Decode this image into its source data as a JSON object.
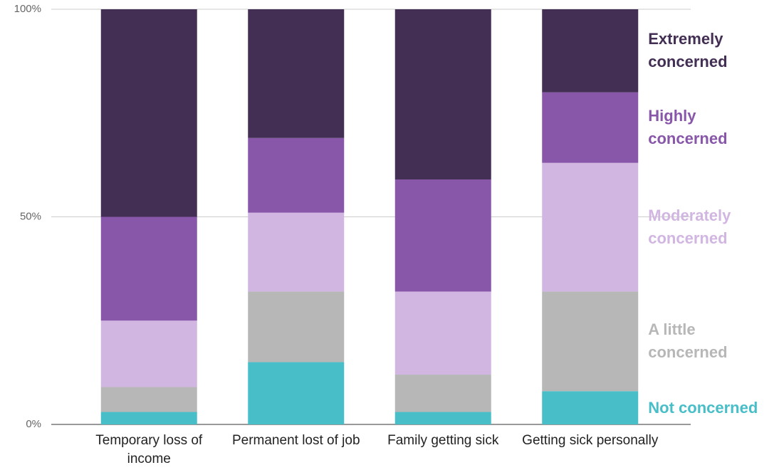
{
  "chart_data": {
    "type": "stacked_bar",
    "categories": [
      "Temporary loss of income",
      "Permanent lost of job",
      "Family getting sick",
      "Getting sick personally"
    ],
    "series": [
      {
        "name": "Not concerned",
        "color": "#48bec8",
        "values": [
          3,
          15,
          3,
          8
        ]
      },
      {
        "name": "A little concerned",
        "color": "#b7b7b7",
        "values": [
          6,
          17,
          9,
          24
        ]
      },
      {
        "name": "Moderately concerned",
        "color": "#d2b6e2",
        "values": [
          16,
          19,
          20,
          31
        ]
      },
      {
        "name": "Highly concerned",
        "color": "#8957a9",
        "values": [
          25,
          18,
          27,
          17
        ]
      },
      {
        "name": "Extremely concerned",
        "color": "#432e54",
        "values": [
          50,
          31,
          41,
          20
        ]
      }
    ],
    "ylim": [
      0,
      100
    ],
    "yticks": [
      {
        "value": 0,
        "label": "0%"
      },
      {
        "value": 50,
        "label": "50%"
      },
      {
        "value": 100,
        "label": "100%"
      }
    ],
    "grid": true
  }
}
